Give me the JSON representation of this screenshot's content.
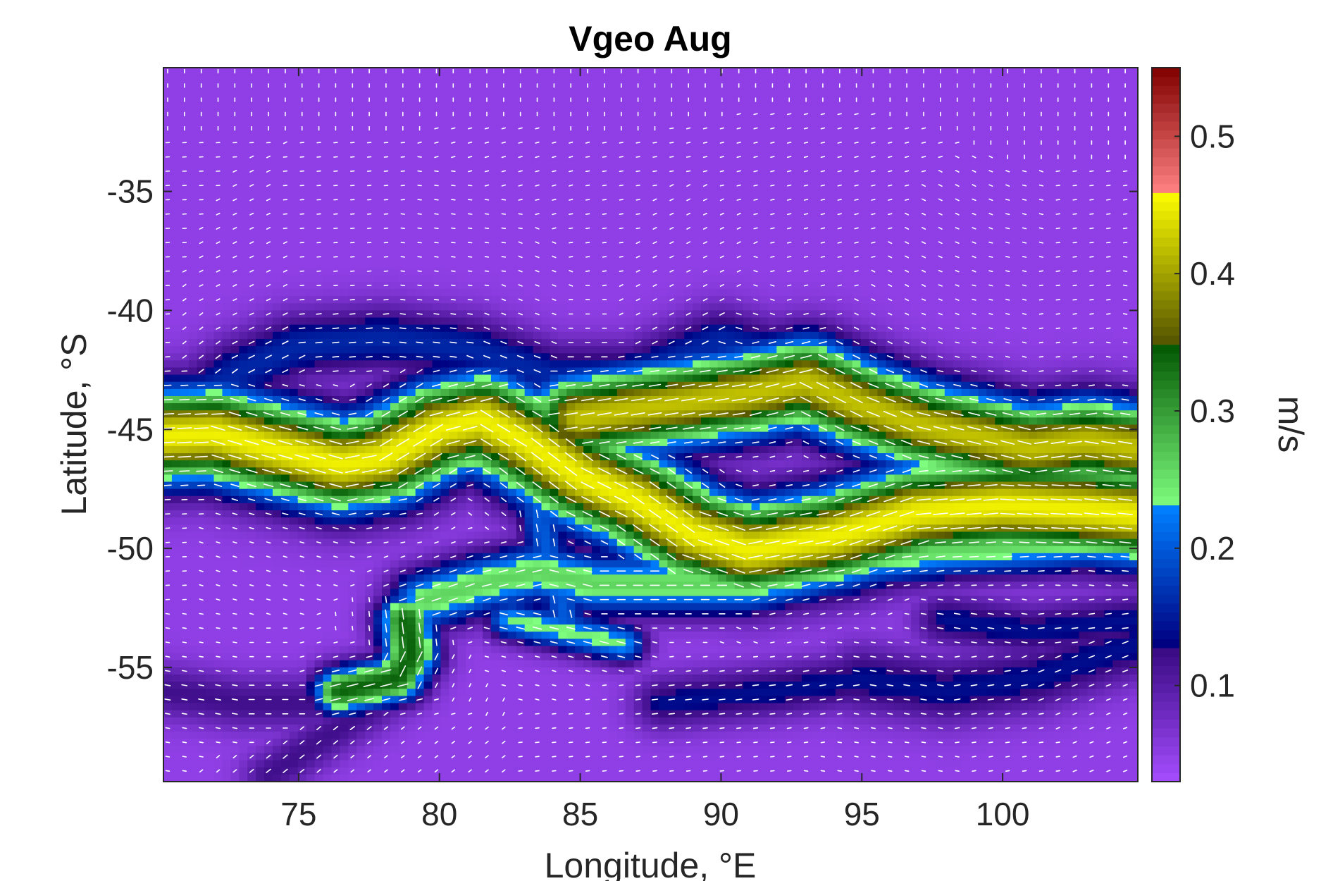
{
  "chart_data": {
    "type": "heatmap",
    "title": "Vgeo Aug",
    "xlabel": "Longitude, °E",
    "ylabel": "Latitude, °S",
    "xlim": [
      70.2,
      104.8
    ],
    "ylim": [
      -59.8,
      -29.8
    ],
    "xticks": [
      75,
      80,
      85,
      90,
      95,
      100
    ],
    "xtick_labels": [
      "75",
      "80",
      "85",
      "90",
      "95",
      "100"
    ],
    "yticks": [
      -35,
      -40,
      -45,
      -50,
      -55
    ],
    "ytick_labels": [
      "-35",
      "-40",
      "-45",
      "-50",
      "-55"
    ],
    "colorbar": {
      "label": "m/s",
      "range": [
        0.03,
        0.55
      ],
      "ticks": [
        0.1,
        0.2,
        0.3,
        0.4,
        0.5
      ],
      "tick_labels": [
        "0.1",
        "0.2",
        "0.3",
        "0.4",
        "0.5"
      ],
      "segments": [
        {
          "from": 0.03,
          "to": 0.13,
          "color_low": "#a64dff",
          "color_high": "#35087f"
        },
        {
          "from": 0.13,
          "to": 0.23,
          "color_low": "#000080",
          "color_high": "#0080ff"
        },
        {
          "from": 0.23,
          "to": 0.35,
          "color_low": "#80ff80",
          "color_high": "#005500"
        },
        {
          "from": 0.35,
          "to": 0.46,
          "color_low": "#555500",
          "color_high": "#ffff00"
        },
        {
          "from": 0.46,
          "to": 0.55,
          "color_low": "#ff8080",
          "color_high": "#800000"
        }
      ]
    },
    "background_value": 0.05,
    "currents": [
      {
        "name": "",
        "peak": 0.45,
        "width": 1.4,
        "path": [
          [
            70.2,
            -45.3
          ],
          [
            72,
            -45.2
          ],
          [
            74,
            -45.8
          ],
          [
            76.5,
            -46.5
          ],
          [
            78,
            -46.2
          ],
          [
            80,
            -45.0
          ],
          [
            81.5,
            -44.6
          ],
          [
            83,
            -45.5
          ],
          [
            85,
            -47.0
          ],
          [
            87,
            -48.0
          ],
          [
            89,
            -49.4
          ],
          [
            91,
            -50.1
          ],
          [
            94,
            -49.5
          ],
          [
            97,
            -48.5
          ],
          [
            100,
            -48.2
          ],
          [
            103,
            -48.4
          ],
          [
            104.8,
            -48.6
          ]
        ]
      },
      {
        "name": "",
        "peak": 0.42,
        "width": 1.3,
        "path": [
          [
            85,
            -44.5
          ],
          [
            88,
            -44.0
          ],
          [
            91,
            -43.5
          ],
          [
            93,
            -43.0
          ],
          [
            95,
            -44.0
          ],
          [
            97,
            -44.8
          ],
          [
            99,
            -45.3
          ],
          [
            101,
            -45.8
          ],
          [
            103,
            -45.5
          ],
          [
            104.8,
            -45.8
          ]
        ]
      },
      {
        "name": "",
        "peak": 0.16,
        "width": 1.0,
        "path": [
          [
            71,
            -44.0
          ],
          [
            73,
            -42.5
          ],
          [
            75,
            -41.5
          ],
          [
            78,
            -41.2
          ],
          [
            81,
            -41.6
          ],
          [
            84,
            -42.8
          ],
          [
            87,
            -42.8
          ],
          [
            90,
            -41.3
          ],
          [
            93,
            -42.3
          ],
          [
            96,
            -44.0
          ]
        ]
      },
      {
        "name": "",
        "peak": 0.26,
        "width": 0.9,
        "path": [
          [
            79.5,
            -52.2
          ],
          [
            81.5,
            -51.5
          ],
          [
            83.5,
            -51.0
          ],
          [
            85.5,
            -51.5
          ],
          [
            88,
            -51.5
          ],
          [
            91,
            -51.5
          ],
          [
            93,
            -51.0
          ],
          [
            95,
            -50.4
          ],
          [
            98,
            -50.0
          ],
          [
            101,
            -49.8
          ],
          [
            104.8,
            -49.5
          ]
        ]
      },
      {
        "name": "",
        "peak": 0.34,
        "width": 0.7,
        "path": [
          [
            76.5,
            -56.0
          ],
          [
            78.5,
            -55.5
          ],
          [
            79.0,
            -54.5
          ],
          [
            78.8,
            -53.0
          ]
        ]
      },
      {
        "name": "",
        "peak": 0.24,
        "width": 0.6,
        "path": [
          [
            82.5,
            -53.0
          ],
          [
            84.5,
            -53.5
          ],
          [
            86.5,
            -54.0
          ]
        ]
      },
      {
        "name": "",
        "peak": 0.2,
        "width": 0.6,
        "path": [
          [
            83.5,
            -48.5
          ],
          [
            84.0,
            -51.0
          ],
          [
            84.5,
            -53.0
          ]
        ]
      },
      {
        "name": "",
        "peak": 0.14,
        "width": 1.0,
        "path": [
          [
            95,
            -55.5
          ],
          [
            98,
            -56.0
          ],
          [
            101,
            -55.5
          ],
          [
            104.8,
            -54.0
          ]
        ]
      },
      {
        "name": "",
        "peak": 0.14,
        "width": 0.8,
        "path": [
          [
            88,
            -56.5
          ],
          [
            92,
            -56.0
          ],
          [
            95,
            -55.5
          ]
        ]
      },
      {
        "name": "",
        "peak": 0.12,
        "width": 0.7,
        "path": [
          [
            74.0,
            -59.5
          ],
          [
            76.5,
            -57.5
          ],
          [
            78.5,
            -56.0
          ]
        ]
      },
      {
        "name": "",
        "peak": 0.12,
        "width": 0.8,
        "path": [
          [
            70.2,
            -56.0
          ],
          [
            73,
            -56.5
          ],
          [
            76,
            -56.5
          ]
        ]
      },
      {
        "name": "",
        "peak": 0.14,
        "width": 0.8,
        "path": [
          [
            98,
            -53.0
          ],
          [
            101,
            -53.5
          ],
          [
            104.8,
            -53.0
          ]
        ]
      }
    ]
  }
}
